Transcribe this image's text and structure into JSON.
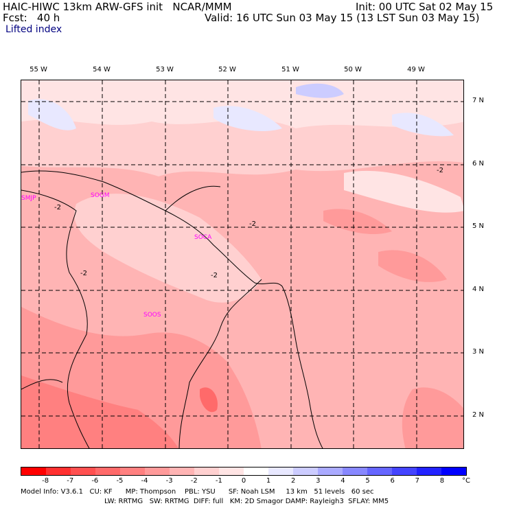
{
  "header": {
    "title_left": "HAIC-HIWC 13km ARW-GFS init   NCAR/MMM",
    "init": "Init: 00 UTC Sat 02 May 15",
    "fcst_label": "Fcst:   40 h",
    "valid": "Valid: 16 UTC Sun 03 May 15 (13 LST Sun 03 May 15)",
    "field": "Lifted index"
  },
  "axes": {
    "lon_labels": [
      "55 W",
      "54 W",
      "53 W",
      "52 W",
      "51 W",
      "50 W",
      "49 W"
    ],
    "lat_labels": [
      "7 N",
      "6 N",
      "5 N",
      "4 N",
      "3 N",
      "2 N"
    ]
  },
  "stations": [
    "SMJP",
    "SOGM",
    "SOCA",
    "SOOS"
  ],
  "contour_labels": [
    "-2",
    "-2",
    "-2",
    "-2",
    "-2",
    "-2"
  ],
  "colorbar": {
    "colors": [
      "#ff0000",
      "#ff3030",
      "#ff5050",
      "#ff6a6a",
      "#ff8080",
      "#ff9a9a",
      "#ffb4b4",
      "#ffd0d0",
      "#ffe4e4",
      "#ffffff",
      "#e8e8ff",
      "#ccccff",
      "#aaaaff",
      "#8888ff",
      "#6666ff",
      "#4444ff",
      "#2222ff",
      "#0000ff"
    ],
    "labels": [
      "-8",
      "-7",
      "-6",
      "-5",
      "-4",
      "-3",
      "-2",
      "-1",
      "0",
      "1",
      "2",
      "3",
      "4",
      "5",
      "6",
      "7",
      "8"
    ],
    "unit": "°C"
  },
  "footer": {
    "line1": "Model Info: V3.6.1   CU: KF      MP: Thompson    PBL: YSU      SF: Noah LSM     13 km   51 levels   60 sec",
    "line2": "LW: RRTMG   SW: RRTMG  DIFF: full   KM: 2D Smagor DAMP: Rayleigh3  SFLAY: MM5"
  }
}
